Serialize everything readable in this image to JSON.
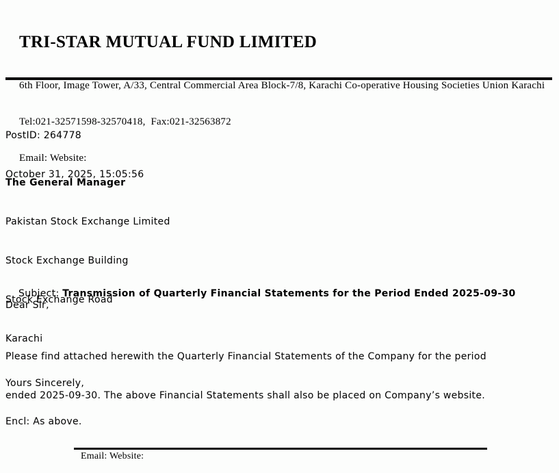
{
  "header": {
    "company_name": "TRI-STAR MUTUAL FUND LIMITED",
    "address_line": "6th Floor, Image Tower, A/33, Central Commercial Area Block-7/8, Karachi Co-operative Housing Societies Union Karachi",
    "tel_fax_line": "Tel:021-32571598-32570418,  Fax:021-32563872",
    "email_website_line": "Email: Website:"
  },
  "meta": {
    "post_id_line": "PostID: 264778",
    "datetime_line": "October 31, 2025, 15:05:56"
  },
  "recipient": {
    "title": "The General Manager",
    "lines": [
      "Pakistan Stock Exchange Limited",
      "Stock Exchange Building",
      "Stock Exchange Road",
      "Karachi"
    ]
  },
  "subject": {
    "label": "Subject: ",
    "text": "Transmission of Quarterly Financial Statements for the Period Ended 2025-09-30"
  },
  "body": {
    "salutation": "Dear Sir,",
    "paragraph_lines": [
      "Please find attached herewith the Quarterly Financial Statements of the Company for the period",
      "ended 2025-09-30. The above Financial Statements shall also be placed on Company’s website."
    ],
    "closing": "Yours Sincerely,",
    "enclosure": "Encl: As above."
  },
  "footer": {
    "email_website_line": "Email: Website:"
  },
  "colors": {
    "page_background": "#fcfdfc",
    "text": "#000000",
    "rule": "#0a0a0a"
  }
}
